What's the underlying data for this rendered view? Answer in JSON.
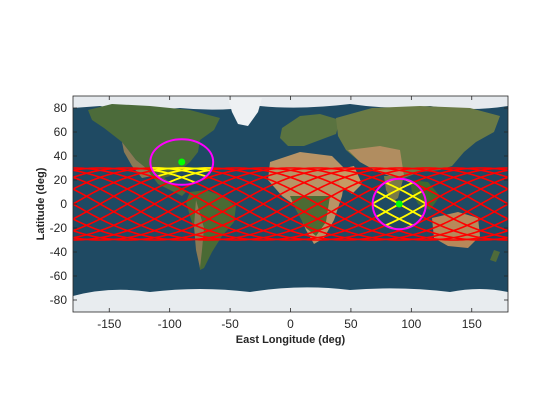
{
  "chart_data": {
    "type": "map",
    "xlabel": "East Longitude (deg)",
    "ylabel": "Latitude (deg)",
    "xlim": [
      -180,
      180
    ],
    "ylim": [
      -90,
      90
    ],
    "xticks": [
      "-150",
      "-100",
      "-50",
      "0",
      "50",
      "100",
      "150"
    ],
    "yticks": [
      "80",
      "60",
      "40",
      "20",
      "0",
      "-20",
      "-40",
      "-60",
      "-80"
    ],
    "grid": false,
    "background": "satellite world map (blue ocean, green/brown land, white polar ice)",
    "ground_track": {
      "color": "#ff0000",
      "inclination_deg": 30,
      "longitude_shift_per_orbit_deg": 22.5,
      "passes": 16
    },
    "coverage_areas": [
      {
        "center_lon": -90,
        "center_lat": 35,
        "radius_lon": 26,
        "radius_lat": 19,
        "ring_color": "#ff00ff",
        "center_color": "#00ff00"
      },
      {
        "center_lon": 90,
        "center_lat": 0,
        "radius_lon": 22,
        "radius_lat": 21,
        "ring_color": "#ff00ff",
        "center_color": "#00ff00"
      }
    ],
    "in_view_track_color": "#ffff00"
  }
}
